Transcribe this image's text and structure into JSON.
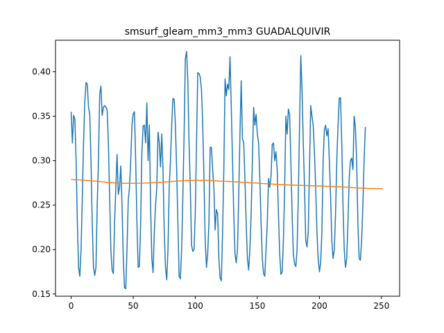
{
  "chart_data": {
    "type": "line",
    "title": "smsurf_gleam_mm3_mm3 GUADALQUIVIR",
    "xlabel": "",
    "ylabel": "",
    "xlim": [
      -12.6,
      264.6
    ],
    "ylim": [
      0.1475,
      0.4355
    ],
    "xticks": [
      0,
      50,
      100,
      150,
      200,
      250
    ],
    "yticks": [
      0.15,
      0.2,
      0.25,
      0.3,
      0.35,
      0.4
    ],
    "ytick_labels": [
      "0.15",
      "0.20",
      "0.25",
      "0.30",
      "0.35",
      "0.40"
    ],
    "grid": false,
    "legend": "none",
    "series": [
      {
        "color": "#1f77b4",
        "points": [
          [
            0,
            0.355
          ],
          [
            1,
            0.32
          ],
          [
            2,
            0.351
          ],
          [
            3,
            0.347
          ],
          [
            4,
            0.3
          ],
          [
            5,
            0.23
          ],
          [
            6,
            0.18
          ],
          [
            7,
            0.17
          ],
          [
            8,
            0.2
          ],
          [
            9,
            0.26
          ],
          [
            10,
            0.32
          ],
          [
            11,
            0.366
          ],
          [
            12,
            0.388
          ],
          [
            13,
            0.386
          ],
          [
            14,
            0.36
          ],
          [
            15,
            0.352
          ],
          [
            16,
            0.3
          ],
          [
            17,
            0.23
          ],
          [
            18,
            0.18
          ],
          [
            19,
            0.171
          ],
          [
            20,
            0.18
          ],
          [
            21,
            0.25
          ],
          [
            22,
            0.3
          ],
          [
            23,
            0.375
          ],
          [
            24,
            0.384
          ],
          [
            25,
            0.351
          ],
          [
            26,
            0.36
          ],
          [
            27,
            0.362
          ],
          [
            28,
            0.36
          ],
          [
            29,
            0.357
          ],
          [
            30,
            0.32
          ],
          [
            31,
            0.26
          ],
          [
            32,
            0.2
          ],
          [
            33,
            0.177
          ],
          [
            34,
            0.173
          ],
          [
            35,
            0.23
          ],
          [
            36,
            0.27
          ],
          [
            37,
            0.307
          ],
          [
            38,
            0.262
          ],
          [
            39,
            0.27
          ],
          [
            40,
            0.294
          ],
          [
            41,
            0.25
          ],
          [
            42,
            0.19
          ],
          [
            43,
            0.157
          ],
          [
            44,
            0.156
          ],
          [
            45,
            0.2
          ],
          [
            46,
            0.255
          ],
          [
            47,
            0.27
          ],
          [
            48,
            0.3
          ],
          [
            49,
            0.34
          ],
          [
            50,
            0.353
          ],
          [
            51,
            0.355
          ],
          [
            52,
            0.3
          ],
          [
            53,
            0.23
          ],
          [
            54,
            0.18
          ],
          [
            55,
            0.181
          ],
          [
            56,
            0.23
          ],
          [
            57,
            0.31
          ],
          [
            58,
            0.339
          ],
          [
            59,
            0.34
          ],
          [
            60,
            0.32
          ],
          [
            61,
            0.365
          ],
          [
            62,
            0.3
          ],
          [
            63,
            0.34
          ],
          [
            64,
            0.25
          ],
          [
            65,
            0.19
          ],
          [
            66,
            0.174
          ],
          [
            67,
            0.22
          ],
          [
            68,
            0.25
          ],
          [
            69,
            0.27
          ],
          [
            70,
            0.332
          ],
          [
            71,
            0.32
          ],
          [
            72,
            0.293
          ],
          [
            73,
            0.33
          ],
          [
            74,
            0.29
          ],
          [
            75,
            0.22
          ],
          [
            76,
            0.18
          ],
          [
            77,
            0.166
          ],
          [
            78,
            0.2
          ],
          [
            79,
            0.27
          ],
          [
            80,
            0.3
          ],
          [
            81,
            0.34
          ],
          [
            82,
            0.37
          ],
          [
            83,
            0.369
          ],
          [
            84,
            0.34
          ],
          [
            85,
            0.29
          ],
          [
            86,
            0.23
          ],
          [
            87,
            0.17
          ],
          [
            88,
            0.167
          ],
          [
            89,
            0.2
          ],
          [
            90,
            0.26
          ],
          [
            91,
            0.33
          ],
          [
            92,
            0.415
          ],
          [
            93,
            0.423
          ],
          [
            94,
            0.39
          ],
          [
            95,
            0.32
          ],
          [
            96,
            0.27
          ],
          [
            97,
            0.205
          ],
          [
            98,
            0.198
          ],
          [
            99,
            0.2
          ],
          [
            100,
            0.24
          ],
          [
            101,
            0.32
          ],
          [
            102,
            0.399
          ],
          [
            103,
            0.398
          ],
          [
            104,
            0.394
          ],
          [
            105,
            0.38
          ],
          [
            106,
            0.34
          ],
          [
            107,
            0.28
          ],
          [
            108,
            0.21
          ],
          [
            109,
            0.18
          ],
          [
            110,
            0.195
          ],
          [
            111,
            0.23
          ],
          [
            112,
            0.315
          ],
          [
            113,
            0.315
          ],
          [
            114,
            0.29
          ],
          [
            115,
            0.27
          ],
          [
            116,
            0.222
          ],
          [
            117,
            0.245
          ],
          [
            118,
            0.24
          ],
          [
            119,
            0.19
          ],
          [
            120,
            0.168
          ],
          [
            121,
            0.165
          ],
          [
            122,
            0.22
          ],
          [
            123,
            0.29
          ],
          [
            124,
            0.392
          ],
          [
            125,
            0.373
          ],
          [
            126,
            0.386
          ],
          [
            127,
            0.38
          ],
          [
            128,
            0.417
          ],
          [
            129,
            0.36
          ],
          [
            130,
            0.3
          ],
          [
            131,
            0.24
          ],
          [
            132,
            0.195
          ],
          [
            133,
            0.185
          ],
          [
            134,
            0.2
          ],
          [
            135,
            0.26
          ],
          [
            136,
            0.33
          ],
          [
            137,
            0.39
          ],
          [
            138,
            0.325
          ],
          [
            139,
            0.32
          ],
          [
            140,
            0.28
          ],
          [
            141,
            0.23
          ],
          [
            142,
            0.19
          ],
          [
            143,
            0.177
          ],
          [
            144,
            0.2
          ],
          [
            145,
            0.24
          ],
          [
            146,
            0.3
          ],
          [
            147,
            0.36
          ],
          [
            148,
            0.34
          ],
          [
            149,
            0.352
          ],
          [
            150,
            0.33
          ],
          [
            151,
            0.32
          ],
          [
            152,
            0.28
          ],
          [
            153,
            0.23
          ],
          [
            154,
            0.19
          ],
          [
            155,
            0.173
          ],
          [
            156,
            0.17
          ],
          [
            157,
            0.2
          ],
          [
            158,
            0.23
          ],
          [
            159,
            0.28
          ],
          [
            160,
            0.27
          ],
          [
            161,
            0.282
          ],
          [
            162,
            0.318
          ],
          [
            163,
            0.32
          ],
          [
            164,
            0.3
          ],
          [
            165,
            0.31
          ],
          [
            166,
            0.29
          ],
          [
            167,
            0.24
          ],
          [
            168,
            0.195
          ],
          [
            169,
            0.172
          ],
          [
            170,
            0.175
          ],
          [
            171,
            0.21
          ],
          [
            172,
            0.27
          ],
          [
            173,
            0.35
          ],
          [
            174,
            0.33
          ],
          [
            175,
            0.358
          ],
          [
            176,
            0.352
          ],
          [
            177,
            0.3
          ],
          [
            178,
            0.24
          ],
          [
            179,
            0.195
          ],
          [
            180,
            0.184
          ],
          [
            181,
            0.181
          ],
          [
            182,
            0.2
          ],
          [
            183,
            0.26
          ],
          [
            184,
            0.34
          ],
          [
            185,
            0.418
          ],
          [
            186,
            0.38
          ],
          [
            187,
            0.32
          ],
          [
            188,
            0.27
          ],
          [
            189,
            0.21
          ],
          [
            190,
            0.203
          ],
          [
            191,
            0.22
          ],
          [
            192,
            0.29
          ],
          [
            193,
            0.362
          ],
          [
            194,
            0.35
          ],
          [
            195,
            0.34
          ],
          [
            196,
            0.31
          ],
          [
            197,
            0.27
          ],
          [
            198,
            0.22
          ],
          [
            199,
            0.19
          ],
          [
            200,
            0.175
          ],
          [
            201,
            0.185
          ],
          [
            202,
            0.22
          ],
          [
            203,
            0.3
          ],
          [
            204,
            0.335
          ],
          [
            205,
            0.34
          ],
          [
            206,
            0.328
          ],
          [
            207,
            0.336
          ],
          [
            208,
            0.3
          ],
          [
            209,
            0.26
          ],
          [
            210,
            0.21
          ],
          [
            211,
            0.19
          ],
          [
            212,
            0.2
          ],
          [
            213,
            0.24
          ],
          [
            214,
            0.3
          ],
          [
            215,
            0.34
          ],
          [
            216,
            0.37
          ],
          [
            217,
            0.371
          ],
          [
            218,
            0.32
          ],
          [
            219,
            0.25
          ],
          [
            220,
            0.2
          ],
          [
            221,
            0.18
          ],
          [
            222,
            0.19
          ],
          [
            223,
            0.23
          ],
          [
            224,
            0.28
          ],
          [
            225,
            0.3
          ],
          [
            226,
            0.303
          ],
          [
            227,
            0.29
          ],
          [
            228,
            0.35
          ],
          [
            229,
            0.337
          ],
          [
            230,
            0.3
          ],
          [
            231,
            0.23
          ],
          [
            232,
            0.19
          ],
          [
            233,
            0.188
          ],
          [
            234,
            0.21
          ],
          [
            235,
            0.25
          ],
          [
            236,
            0.3
          ],
          [
            237,
            0.338
          ]
        ]
      },
      {
        "color": "#ff7f0e",
        "points": [
          [
            0,
            0.279
          ],
          [
            10,
            0.278
          ],
          [
            20,
            0.277
          ],
          [
            30,
            0.2755
          ],
          [
            40,
            0.2745
          ],
          [
            50,
            0.2745
          ],
          [
            60,
            0.2748
          ],
          [
            70,
            0.2755
          ],
          [
            80,
            0.2765
          ],
          [
            90,
            0.2775
          ],
          [
            100,
            0.2778
          ],
          [
            110,
            0.2778
          ],
          [
            120,
            0.277
          ],
          [
            130,
            0.2765
          ],
          [
            140,
            0.2755
          ],
          [
            150,
            0.2748
          ],
          [
            160,
            0.2738
          ],
          [
            170,
            0.273
          ],
          [
            180,
            0.2725
          ],
          [
            190,
            0.272
          ],
          [
            200,
            0.2715
          ],
          [
            210,
            0.271
          ],
          [
            220,
            0.2703
          ],
          [
            230,
            0.2695
          ],
          [
            240,
            0.2688
          ],
          [
            251,
            0.2685
          ]
        ]
      }
    ]
  }
}
